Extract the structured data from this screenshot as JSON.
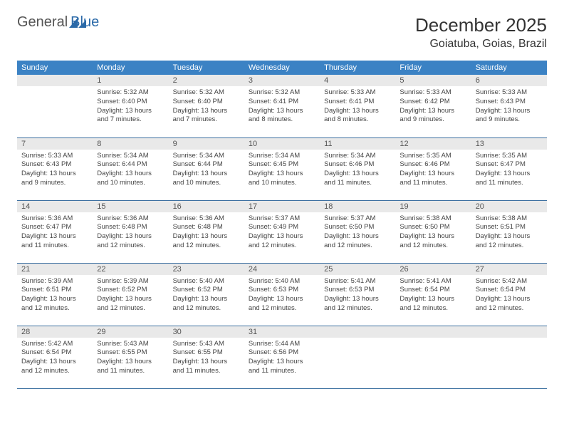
{
  "brand": {
    "part1": "General",
    "part2": "Blue"
  },
  "title": "December 2025",
  "location": "Goiatuba, Goias, Brazil",
  "colors": {
    "header_bg": "#3b82c4",
    "header_text": "#ffffff",
    "daynum_bg": "#e9e9e9",
    "border": "#3b6fa0",
    "brand_blue": "#2a69a8"
  },
  "weekdays": [
    "Sunday",
    "Monday",
    "Tuesday",
    "Wednesday",
    "Thursday",
    "Friday",
    "Saturday"
  ],
  "weeks": [
    [
      {
        "n": "",
        "sr": "",
        "ss": "",
        "dl": ""
      },
      {
        "n": "1",
        "sr": "Sunrise: 5:32 AM",
        "ss": "Sunset: 6:40 PM",
        "dl": "Daylight: 13 hours and 7 minutes."
      },
      {
        "n": "2",
        "sr": "Sunrise: 5:32 AM",
        "ss": "Sunset: 6:40 PM",
        "dl": "Daylight: 13 hours and 7 minutes."
      },
      {
        "n": "3",
        "sr": "Sunrise: 5:32 AM",
        "ss": "Sunset: 6:41 PM",
        "dl": "Daylight: 13 hours and 8 minutes."
      },
      {
        "n": "4",
        "sr": "Sunrise: 5:33 AM",
        "ss": "Sunset: 6:41 PM",
        "dl": "Daylight: 13 hours and 8 minutes."
      },
      {
        "n": "5",
        "sr": "Sunrise: 5:33 AM",
        "ss": "Sunset: 6:42 PM",
        "dl": "Daylight: 13 hours and 9 minutes."
      },
      {
        "n": "6",
        "sr": "Sunrise: 5:33 AM",
        "ss": "Sunset: 6:43 PM",
        "dl": "Daylight: 13 hours and 9 minutes."
      }
    ],
    [
      {
        "n": "7",
        "sr": "Sunrise: 5:33 AM",
        "ss": "Sunset: 6:43 PM",
        "dl": "Daylight: 13 hours and 9 minutes."
      },
      {
        "n": "8",
        "sr": "Sunrise: 5:34 AM",
        "ss": "Sunset: 6:44 PM",
        "dl": "Daylight: 13 hours and 10 minutes."
      },
      {
        "n": "9",
        "sr": "Sunrise: 5:34 AM",
        "ss": "Sunset: 6:44 PM",
        "dl": "Daylight: 13 hours and 10 minutes."
      },
      {
        "n": "10",
        "sr": "Sunrise: 5:34 AM",
        "ss": "Sunset: 6:45 PM",
        "dl": "Daylight: 13 hours and 10 minutes."
      },
      {
        "n": "11",
        "sr": "Sunrise: 5:34 AM",
        "ss": "Sunset: 6:46 PM",
        "dl": "Daylight: 13 hours and 11 minutes."
      },
      {
        "n": "12",
        "sr": "Sunrise: 5:35 AM",
        "ss": "Sunset: 6:46 PM",
        "dl": "Daylight: 13 hours and 11 minutes."
      },
      {
        "n": "13",
        "sr": "Sunrise: 5:35 AM",
        "ss": "Sunset: 6:47 PM",
        "dl": "Daylight: 13 hours and 11 minutes."
      }
    ],
    [
      {
        "n": "14",
        "sr": "Sunrise: 5:36 AM",
        "ss": "Sunset: 6:47 PM",
        "dl": "Daylight: 13 hours and 11 minutes."
      },
      {
        "n": "15",
        "sr": "Sunrise: 5:36 AM",
        "ss": "Sunset: 6:48 PM",
        "dl": "Daylight: 13 hours and 12 minutes."
      },
      {
        "n": "16",
        "sr": "Sunrise: 5:36 AM",
        "ss": "Sunset: 6:48 PM",
        "dl": "Daylight: 13 hours and 12 minutes."
      },
      {
        "n": "17",
        "sr": "Sunrise: 5:37 AM",
        "ss": "Sunset: 6:49 PM",
        "dl": "Daylight: 13 hours and 12 minutes."
      },
      {
        "n": "18",
        "sr": "Sunrise: 5:37 AM",
        "ss": "Sunset: 6:50 PM",
        "dl": "Daylight: 13 hours and 12 minutes."
      },
      {
        "n": "19",
        "sr": "Sunrise: 5:38 AM",
        "ss": "Sunset: 6:50 PM",
        "dl": "Daylight: 13 hours and 12 minutes."
      },
      {
        "n": "20",
        "sr": "Sunrise: 5:38 AM",
        "ss": "Sunset: 6:51 PM",
        "dl": "Daylight: 13 hours and 12 minutes."
      }
    ],
    [
      {
        "n": "21",
        "sr": "Sunrise: 5:39 AM",
        "ss": "Sunset: 6:51 PM",
        "dl": "Daylight: 13 hours and 12 minutes."
      },
      {
        "n": "22",
        "sr": "Sunrise: 5:39 AM",
        "ss": "Sunset: 6:52 PM",
        "dl": "Daylight: 13 hours and 12 minutes."
      },
      {
        "n": "23",
        "sr": "Sunrise: 5:40 AM",
        "ss": "Sunset: 6:52 PM",
        "dl": "Daylight: 13 hours and 12 minutes."
      },
      {
        "n": "24",
        "sr": "Sunrise: 5:40 AM",
        "ss": "Sunset: 6:53 PM",
        "dl": "Daylight: 13 hours and 12 minutes."
      },
      {
        "n": "25",
        "sr": "Sunrise: 5:41 AM",
        "ss": "Sunset: 6:53 PM",
        "dl": "Daylight: 13 hours and 12 minutes."
      },
      {
        "n": "26",
        "sr": "Sunrise: 5:41 AM",
        "ss": "Sunset: 6:54 PM",
        "dl": "Daylight: 13 hours and 12 minutes."
      },
      {
        "n": "27",
        "sr": "Sunrise: 5:42 AM",
        "ss": "Sunset: 6:54 PM",
        "dl": "Daylight: 13 hours and 12 minutes."
      }
    ],
    [
      {
        "n": "28",
        "sr": "Sunrise: 5:42 AM",
        "ss": "Sunset: 6:54 PM",
        "dl": "Daylight: 13 hours and 12 minutes."
      },
      {
        "n": "29",
        "sr": "Sunrise: 5:43 AM",
        "ss": "Sunset: 6:55 PM",
        "dl": "Daylight: 13 hours and 11 minutes."
      },
      {
        "n": "30",
        "sr": "Sunrise: 5:43 AM",
        "ss": "Sunset: 6:55 PM",
        "dl": "Daylight: 13 hours and 11 minutes."
      },
      {
        "n": "31",
        "sr": "Sunrise: 5:44 AM",
        "ss": "Sunset: 6:56 PM",
        "dl": "Daylight: 13 hours and 11 minutes."
      },
      {
        "n": "",
        "sr": "",
        "ss": "",
        "dl": ""
      },
      {
        "n": "",
        "sr": "",
        "ss": "",
        "dl": ""
      },
      {
        "n": "",
        "sr": "",
        "ss": "",
        "dl": ""
      }
    ]
  ]
}
